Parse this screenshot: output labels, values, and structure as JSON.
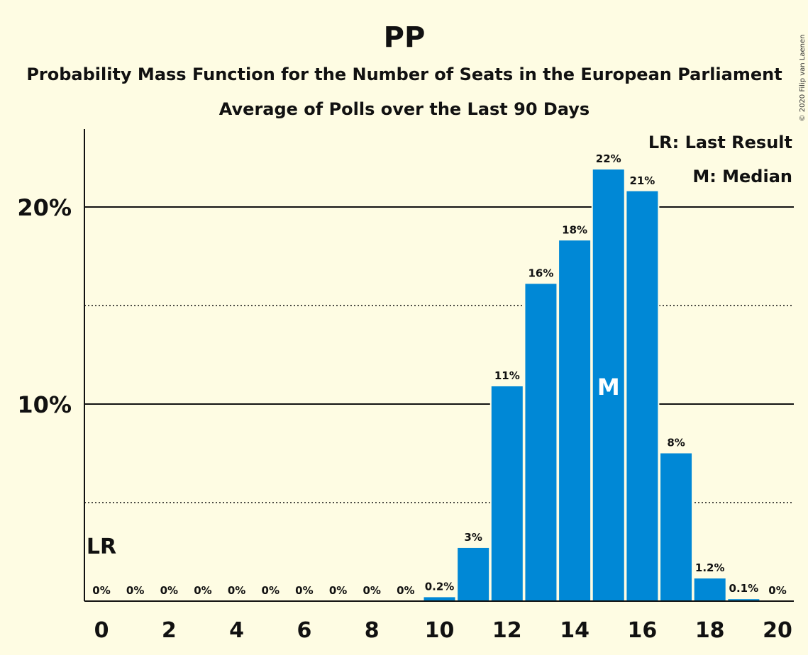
{
  "chart_data": {
    "type": "bar",
    "title": "PP",
    "subtitle": "Probability Mass Function for the Number of Seats in the European Parliament",
    "subtitle2": "Average of Polls over the Last 90 Days",
    "copyright": "© 2020 Filip van Laenen",
    "categories": [
      0,
      1,
      2,
      3,
      4,
      5,
      6,
      7,
      8,
      9,
      10,
      11,
      12,
      13,
      14,
      15,
      16,
      17,
      18,
      19,
      20
    ],
    "values": [
      0,
      0,
      0,
      0,
      0,
      0,
      0,
      0,
      0,
      0,
      0.2,
      2.7,
      10.9,
      16.1,
      18.3,
      21.9,
      20.8,
      7.5,
      1.15,
      0.1,
      0
    ],
    "value_labels": [
      "0%",
      "0%",
      "0%",
      "0%",
      "0%",
      "0%",
      "0%",
      "0%",
      "0%",
      "0%",
      "0.2%",
      "3%",
      "11%",
      "16%",
      "18%",
      "22%",
      "21%",
      "8%",
      "1.2%",
      "0.1%",
      "0%"
    ],
    "x_tick_labels": [
      "0",
      "2",
      "4",
      "6",
      "8",
      "10",
      "12",
      "14",
      "16",
      "18",
      "20"
    ],
    "x_tick_values": [
      0,
      2,
      4,
      6,
      8,
      10,
      12,
      14,
      16,
      18,
      20
    ],
    "y_tick_labels": [
      "10%",
      "20%"
    ],
    "y_tick_values": [
      10,
      20
    ],
    "y_dotted_values": [
      5,
      15
    ],
    "ylim": [
      0,
      24
    ],
    "bar_color": "#0088D6",
    "last_result": {
      "seats": 0,
      "label": "LR"
    },
    "median": {
      "seats": 15,
      "label": "M"
    },
    "legend": [
      "LR: Last Result",
      "M: Median"
    ],
    "xlabel": "",
    "ylabel": "",
    "grid": true,
    "legend_position": "top-right"
  }
}
